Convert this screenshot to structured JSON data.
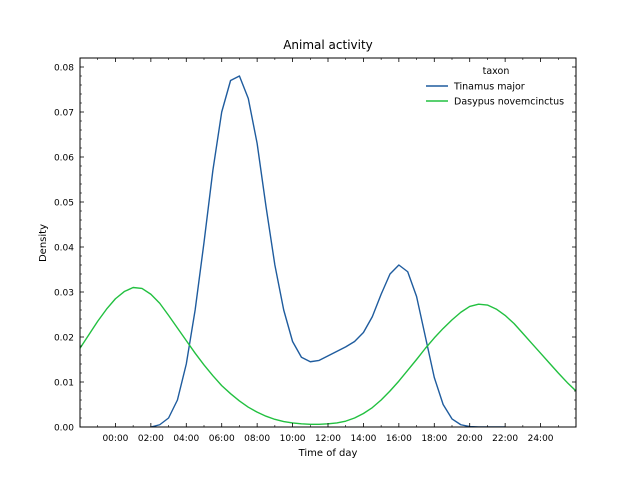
{
  "chart_data": {
    "type": "line",
    "title": "Animal activity",
    "xlabel": "Time of day",
    "ylabel": "Density",
    "xlim": [
      -2.0,
      26.0
    ],
    "ylim": [
      0.0,
      0.082
    ],
    "x_ticks": [
      {
        "value": 0,
        "label": "00:00"
      },
      {
        "value": 2,
        "label": "02:00"
      },
      {
        "value": 4,
        "label": "04:00"
      },
      {
        "value": 6,
        "label": "06:00"
      },
      {
        "value": 8,
        "label": "08:00"
      },
      {
        "value": 10,
        "label": "10:00"
      },
      {
        "value": 12,
        "label": "12:00"
      },
      {
        "value": 14,
        "label": "14:00"
      },
      {
        "value": 16,
        "label": "16:00"
      },
      {
        "value": 18,
        "label": "18:00"
      },
      {
        "value": 20,
        "label": "20:00"
      },
      {
        "value": 22,
        "label": "22:00"
      },
      {
        "value": 24,
        "label": "24:00"
      }
    ],
    "y_ticks": [
      {
        "value": 0.0,
        "label": "0.00"
      },
      {
        "value": 0.01,
        "label": "0.01"
      },
      {
        "value": 0.02,
        "label": "0.02"
      },
      {
        "value": 0.03,
        "label": "0.03"
      },
      {
        "value": 0.04,
        "label": "0.04"
      },
      {
        "value": 0.05,
        "label": "0.05"
      },
      {
        "value": 0.06,
        "label": "0.06"
      },
      {
        "value": 0.07,
        "label": "0.07"
      },
      {
        "value": 0.08,
        "label": "0.08"
      }
    ],
    "grid": false,
    "legend": {
      "title": "taxon",
      "placement": "top-right"
    },
    "series": [
      {
        "name": "Tinamus major",
        "color": "#1f5c9e",
        "x": [
          2.0,
          2.5,
          3.0,
          3.5,
          4.0,
          4.5,
          5.0,
          5.5,
          6.0,
          6.5,
          7.0,
          7.5,
          8.0,
          8.5,
          9.0,
          9.5,
          10.0,
          10.5,
          11.0,
          11.5,
          12.0,
          12.5,
          13.0,
          13.5,
          14.0,
          14.5,
          15.0,
          15.5,
          16.0,
          16.5,
          17.0,
          17.5,
          18.0,
          18.5,
          19.0,
          19.5,
          20.0,
          20.5,
          21.0,
          21.5,
          22.0
        ],
        "values": [
          0.0,
          0.0005,
          0.002,
          0.006,
          0.014,
          0.026,
          0.041,
          0.057,
          0.07,
          0.077,
          0.078,
          0.073,
          0.063,
          0.049,
          0.036,
          0.026,
          0.019,
          0.0155,
          0.0145,
          0.0148,
          0.0158,
          0.0168,
          0.0178,
          0.019,
          0.021,
          0.0245,
          0.0295,
          0.034,
          0.036,
          0.0345,
          0.029,
          0.02,
          0.011,
          0.005,
          0.0018,
          0.0005,
          0.0001,
          0.0,
          0.0,
          0.0,
          0.0
        ]
      },
      {
        "name": "Dasypus novemcinctus",
        "color": "#22c040",
        "x": [
          -2.0,
          -1.5,
          -1.0,
          -0.5,
          0.0,
          0.5,
          1.0,
          1.5,
          2.0,
          2.5,
          3.0,
          3.5,
          4.0,
          4.5,
          5.0,
          5.5,
          6.0,
          6.5,
          7.0,
          7.5,
          8.0,
          8.5,
          9.0,
          9.5,
          10.0,
          10.5,
          11.0,
          11.5,
          12.0,
          12.5,
          13.0,
          13.5,
          14.0,
          14.5,
          15.0,
          15.5,
          16.0,
          16.5,
          17.0,
          17.5,
          18.0,
          18.5,
          19.0,
          19.5,
          20.0,
          20.5,
          21.0,
          21.5,
          22.0,
          22.5,
          23.0,
          23.5,
          24.0,
          24.5,
          25.0,
          25.5,
          26.0
        ],
        "values": [
          0.0175,
          0.0205,
          0.0235,
          0.0262,
          0.0285,
          0.0301,
          0.031,
          0.0308,
          0.0295,
          0.0275,
          0.0248,
          0.022,
          0.0192,
          0.0164,
          0.0138,
          0.0114,
          0.0092,
          0.0074,
          0.0058,
          0.0044,
          0.0033,
          0.0024,
          0.0017,
          0.0012,
          0.0009,
          0.0007,
          0.0006,
          0.0006,
          0.0007,
          0.0009,
          0.0013,
          0.002,
          0.003,
          0.0043,
          0.006,
          0.008,
          0.0102,
          0.0126,
          0.015,
          0.0175,
          0.0198,
          0.0219,
          0.0238,
          0.0255,
          0.0268,
          0.0273,
          0.0271,
          0.0262,
          0.0248,
          0.023,
          0.0208,
          0.0186,
          0.0164,
          0.0142,
          0.012,
          0.0099,
          0.008
        ]
      }
    ]
  }
}
